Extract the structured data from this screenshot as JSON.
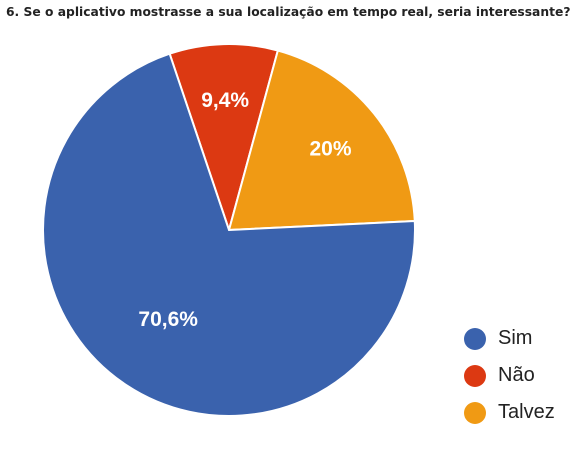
{
  "chart_data": {
    "type": "pie",
    "title": "6. Se o aplicativo mostrasse a sua localização em tempo real, seria interessante?",
    "slices": [
      {
        "label": "Sim",
        "value": 70.6,
        "display": "70,6%",
        "color": "#3a62ad"
      },
      {
        "label": "Não",
        "value": 9.4,
        "display": "9,4%",
        "color": "#dc3912"
      },
      {
        "label": "Talvez",
        "value": 20,
        "display": "20%",
        "color": "#f09a14"
      }
    ],
    "legend_position": "bottom-right"
  }
}
